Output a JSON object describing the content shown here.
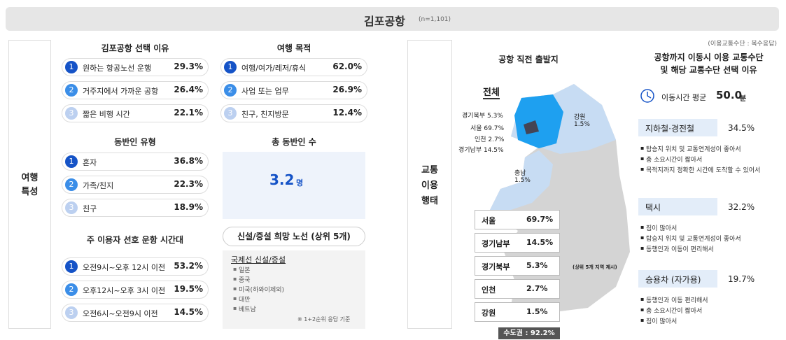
{
  "header": {
    "title": "김포공항",
    "n": "(n=1,101)"
  },
  "travel": {
    "label": [
      "여행",
      "특성"
    ],
    "choice_reason": {
      "title": "김포공항 선택 이유",
      "items": [
        {
          "rank": "1",
          "text": "원하는 항공노선 운행",
          "value": "29.3%"
        },
        {
          "rank": "2",
          "text": "거주지에서 가까운 공항",
          "value": "26.4%"
        },
        {
          "rank": "3",
          "text": "짧은 비행 시간",
          "value": "22.1%"
        }
      ]
    },
    "companion_type": {
      "title": "동반인 유형",
      "items": [
        {
          "rank": "1",
          "text": "혼자",
          "value": "36.8%"
        },
        {
          "rank": "2",
          "text": "가족/친지",
          "value": "22.3%"
        },
        {
          "rank": "3",
          "text": "친구",
          "value": "18.9%"
        }
      ]
    },
    "preferred_time": {
      "title": "주 이용자 선호 운항 시간대",
      "items": [
        {
          "rank": "1",
          "text": "오전9시~오후 12시 이전",
          "value": "53.2%"
        },
        {
          "rank": "2",
          "text": "오후12시~오후 3시 이전",
          "value": "19.5%"
        },
        {
          "rank": "3",
          "text": "오전6시~오전9시 이전",
          "value": "14.5%"
        }
      ]
    },
    "purpose": {
      "title": "여행 목적",
      "items": [
        {
          "rank": "1",
          "text": "여행/여가/레저/휴식",
          "value": "62.0%"
        },
        {
          "rank": "2",
          "text": "사업 또는 업무",
          "value": "26.9%"
        },
        {
          "rank": "3",
          "text": "친구, 친지방문",
          "value": "12.4%"
        }
      ]
    },
    "companions_total": {
      "title": "총 동반인 수",
      "value": "3.2",
      "unit": "명"
    },
    "new_routes": {
      "title": "신설/증설 희망 노선 (상위 5개)",
      "subtitle": "국제선 신설/증설",
      "items": [
        "일본",
        "중국",
        "미국(하와이제외)",
        "대만",
        "베트남"
      ],
      "note": "※ 1+2순위 응답 기준"
    }
  },
  "transport": {
    "label": [
      "교통",
      "이용",
      "행태"
    ],
    "note": "(이용교통수단 : 복수응답)",
    "departure": {
      "title": "공항 직전 출발지",
      "map_label": "전체",
      "labels": [
        "경기북부 5.3%",
        "서울 69.7%",
        "인천 2.7%",
        "경기남부 14.5%"
      ],
      "gangwon": [
        "강원",
        "1.5%"
      ],
      "chungnam": [
        "충남",
        "1.5%"
      ],
      "table": [
        [
          "서울",
          "69.7%"
        ],
        [
          "경기남부",
          "14.5%"
        ],
        [
          "경기북부",
          "5.3%"
        ],
        [
          "인천",
          "2.7%"
        ],
        [
          "강원",
          "1.5%"
        ]
      ],
      "table_note": "(상위 5개 지역 제시)",
      "capital": "수도권 : 92.2%"
    },
    "mode": {
      "title": [
        "공항까지 이동시 이용 교통수단",
        "및 해당 교통수단 선택 이유"
      ],
      "avg_label": "이동시간 평균",
      "avg_value": "50.0",
      "avg_unit": "분",
      "modes": [
        {
          "name": "지하철·경전철",
          "value": "34.5%",
          "reasons": [
            "탑승지 위치 및 교통연계성이 좋아서",
            "총 소요시간이 짧아서",
            "목적지까지 정확한 시간에 도착할 수 있어서"
          ]
        },
        {
          "name": "택시",
          "value": "32.2%",
          "reasons": [
            "짐이 많아서",
            "탑승지 위치 및 교통연계성이 좋아서",
            "동행인과 이동이 편리해서"
          ]
        },
        {
          "name": "승용차 (자가용)",
          "value": "19.7%",
          "reasons": [
            "동행인과 이동 편리해서",
            "총 소요시간이 짧아서",
            "짐이 많아서"
          ]
        }
      ]
    }
  }
}
